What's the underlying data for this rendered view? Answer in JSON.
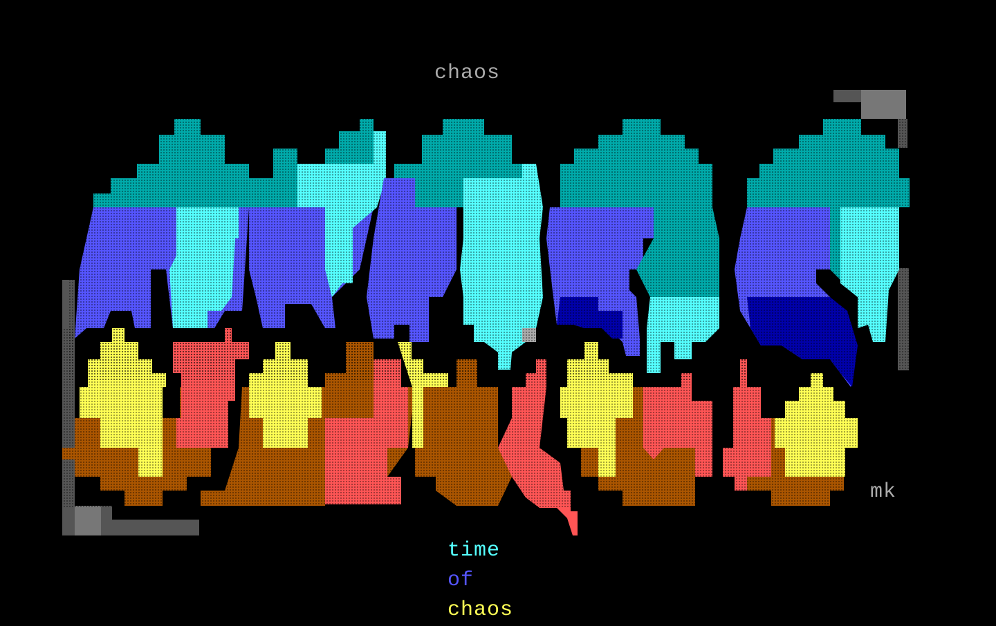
{
  "header": {
    "title": "chaos"
  },
  "signature": "mk",
  "caption": {
    "lines": [
      "time",
      "of",
      "chaos"
    ]
  }
}
